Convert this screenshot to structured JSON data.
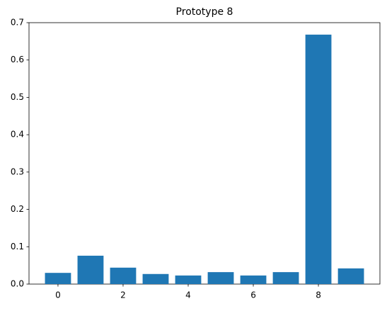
{
  "chart_data": {
    "type": "bar",
    "title": "Prototype 8",
    "x": [
      0,
      1,
      2,
      3,
      4,
      5,
      6,
      7,
      8,
      9
    ],
    "values": [
      0.03,
      0.076,
      0.044,
      0.027,
      0.023,
      0.032,
      0.023,
      0.032,
      0.668,
      0.042
    ],
    "color": "#1f77b4",
    "xlim": [
      -0.89,
      9.89
    ],
    "xticks": [
      0,
      2,
      4,
      6,
      8
    ],
    "ylim": [
      0,
      0.7
    ],
    "yticks": [
      {
        "value": 0,
        "label": "0.0"
      },
      0.1,
      0.2,
      0.3,
      0.4,
      0.5,
      0.6,
      0.7
    ],
    "grid": false
  }
}
